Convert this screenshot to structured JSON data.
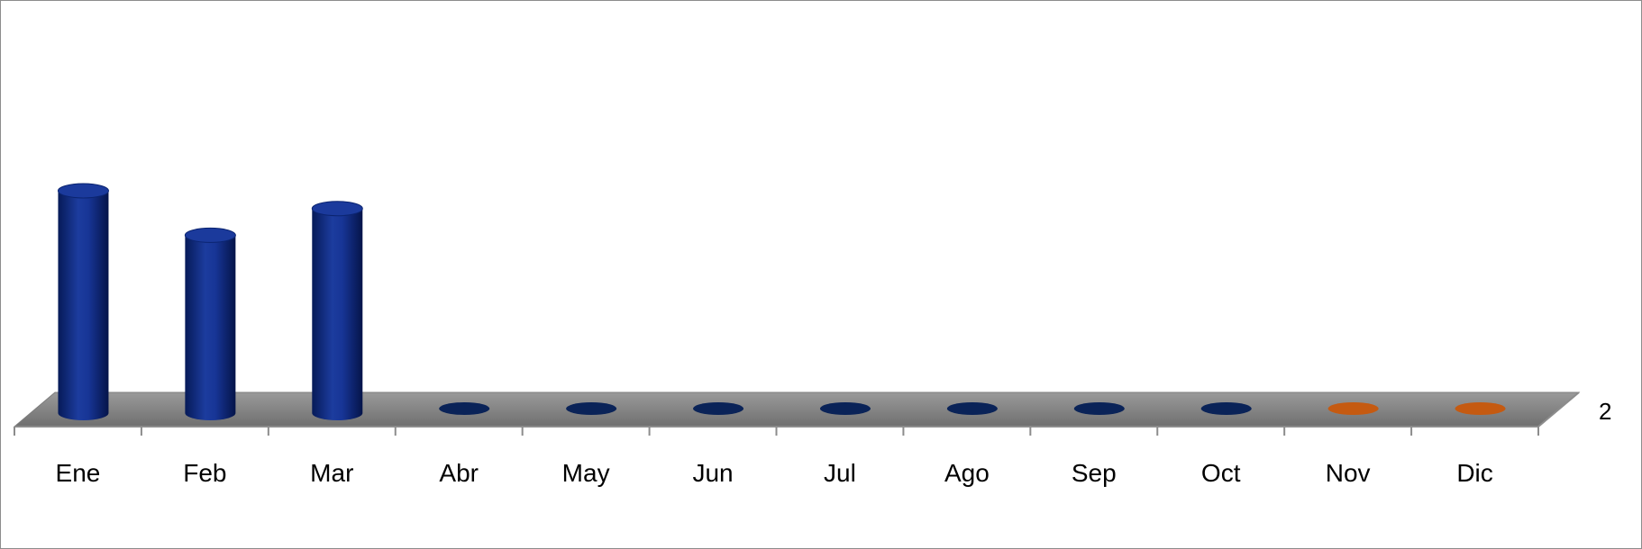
{
  "chart_data": {
    "type": "bar",
    "style": "3d-cylinder",
    "title": "",
    "categories": [
      "Ene",
      "Feb",
      "Mar",
      "Abr",
      "May",
      "Jun",
      "Jul",
      "Ago",
      "Sep",
      "Oct",
      "Nov",
      "Dic"
    ],
    "series": [
      {
        "values": [
          250,
          200,
          230,
          0,
          0,
          0,
          0,
          0,
          0,
          0,
          0,
          0
        ],
        "point_colors": [
          "#0a2a82",
          "#0a2a82",
          "#0a2a82",
          "#0a2a82",
          "#0a2a82",
          "#0a2a82",
          "#0a2a82",
          "#0a2a82",
          "#0a2a82",
          "#0a2a82",
          "#c55a11",
          "#c55a11"
        ]
      }
    ],
    "depth_axis_labels": [
      "2"
    ],
    "ylim": [
      0,
      450
    ],
    "grid": false,
    "legend": "none",
    "colors": {
      "bar": "#0a2a82",
      "bar_future": "#c55a11",
      "floor": "#8c8c8c"
    }
  }
}
